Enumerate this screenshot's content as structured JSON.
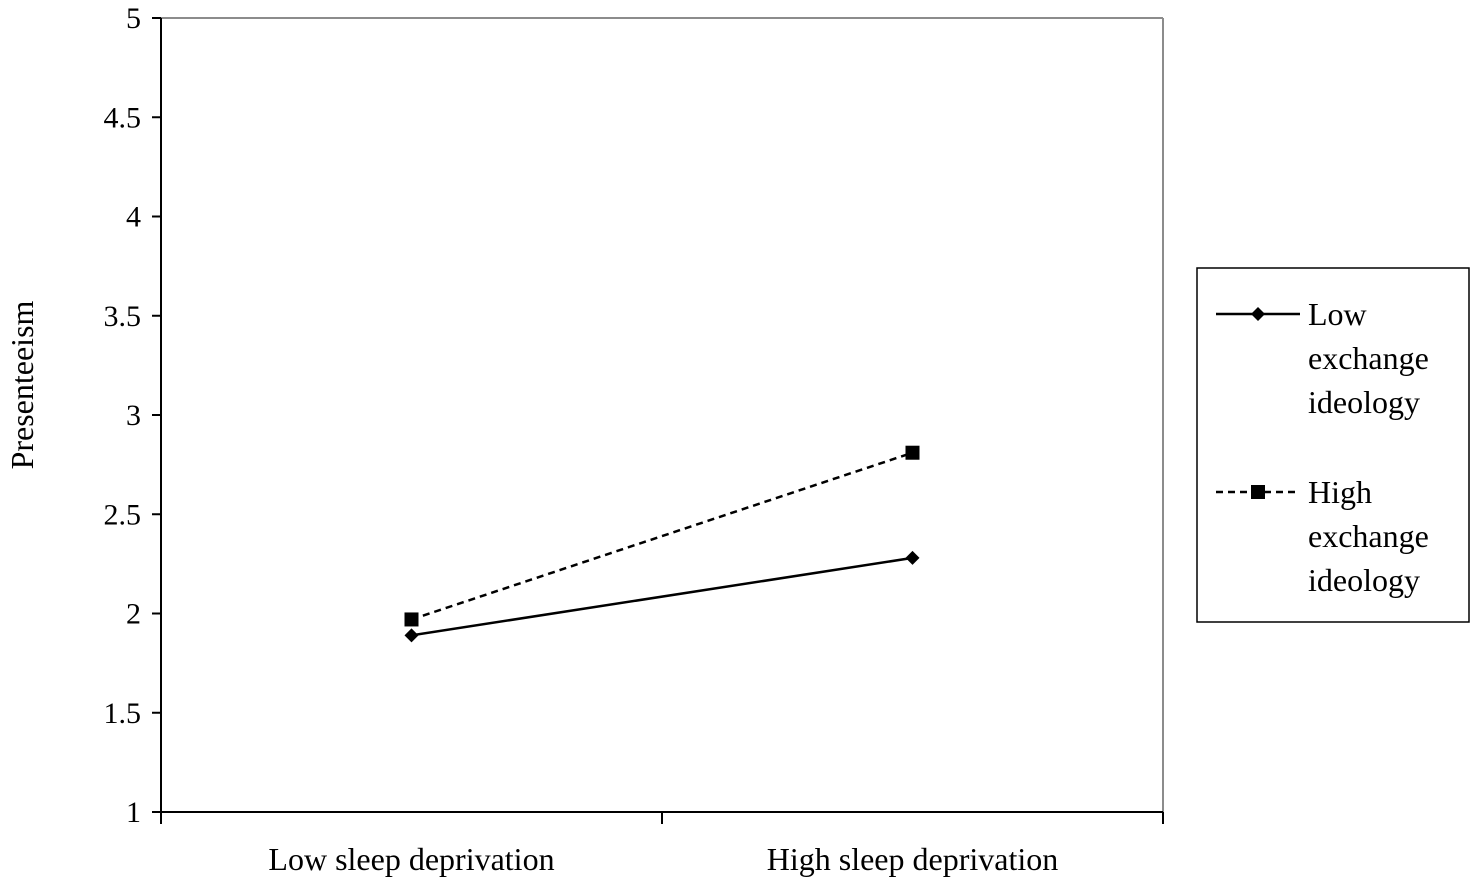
{
  "chart_data": {
    "type": "line",
    "title": "",
    "xlabel": "",
    "ylabel": "Presenteeism",
    "categories": [
      "Low sleep deprivation",
      "High sleep deprivation"
    ],
    "ylim": [
      1,
      5
    ],
    "yticks": [
      "1",
      "1.5",
      "2",
      "2.5",
      "3",
      "3.5",
      "4",
      "4.5",
      "5"
    ],
    "grid": false,
    "legend_position": "right",
    "series": [
      {
        "name_lines": [
          "Low",
          "exchange",
          "ideology"
        ],
        "values": [
          1.89,
          2.28
        ],
        "line_style": "solid",
        "marker": "diamond",
        "color": "#000000"
      },
      {
        "name_lines": [
          "High",
          "exchange",
          "ideology"
        ],
        "values": [
          1.97,
          2.81
        ],
        "line_style": "dashed",
        "marker": "square",
        "color": "#000000"
      }
    ]
  }
}
